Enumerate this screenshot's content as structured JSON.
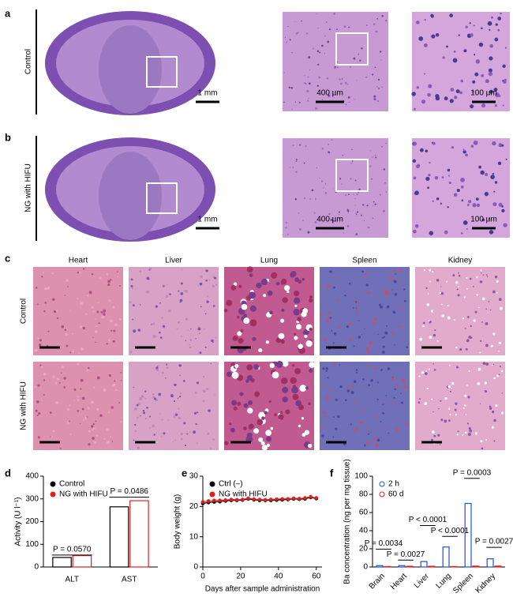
{
  "figure": {
    "panel_labels": [
      "a",
      "b",
      "c",
      "d",
      "e",
      "f"
    ],
    "brain_rows": [
      {
        "label": "Control",
        "scale_bars": [
          "1 mm",
          "400 µm",
          "100 µm"
        ]
      },
      {
        "label": "NG with HIFU",
        "scale_bars": [
          "1 mm",
          "400 µm",
          "100 µm"
        ]
      }
    ],
    "organ_columns": [
      "Heart",
      "Liver",
      "Lung",
      "Spleen",
      "Kidney"
    ],
    "organ_rows": [
      "Control",
      "NG with HIFU"
    ]
  },
  "chart_data": [
    {
      "type": "bar",
      "y_label": "Activity (U l⁻¹)",
      "categories": [
        "ALT",
        "AST"
      ],
      "series": [
        {
          "name": "Control",
          "color": "#000000",
          "values": [
            42,
            265
          ]
        },
        {
          "name": "NG with HIFU",
          "color": "#e02020",
          "values": [
            50,
            292
          ]
        }
      ],
      "ylim": [
        0,
        400
      ],
      "yticks": [
        0,
        100,
        200,
        300,
        400
      ],
      "annotations": [
        "P = 0.0570",
        "P = 0.0486"
      ]
    },
    {
      "type": "line",
      "y_label": "Body weight (g)",
      "x_label": "Days after sample administration",
      "x": [
        0,
        3,
        6,
        9,
        12,
        15,
        18,
        21,
        24,
        27,
        30,
        33,
        36,
        39,
        42,
        45,
        48,
        51,
        54,
        57,
        60
      ],
      "series": [
        {
          "name": "Ctrl (–)",
          "color": "#000000",
          "values": [
            21,
            21.3,
            21.5,
            21.6,
            21.8,
            22,
            22,
            22.1,
            22.5,
            22.2,
            22,
            22,
            22,
            22.1,
            22.2,
            22.3,
            22.5,
            22.4,
            22.5,
            23,
            22.6
          ]
        },
        {
          "name": "NG with HIFU",
          "color": "#e02020",
          "values": [
            21.5,
            21.8,
            22,
            22,
            22.1,
            22.3,
            22.2,
            22.3,
            22.7,
            22.4,
            22.3,
            22.2,
            22.3,
            22.4,
            22.5,
            22.5,
            22.7,
            22.6,
            22.8,
            23.2,
            22.8
          ]
        }
      ],
      "xlim": [
        0,
        63
      ],
      "xticks": [
        0,
        20,
        40,
        60
      ],
      "ylim": [
        0,
        30
      ],
      "yticks": [
        0,
        10,
        20,
        30
      ]
    },
    {
      "type": "bar",
      "y_label": "Ba concentration (ng per mg tissue)",
      "categories": [
        "Brain",
        "Heart",
        "Liver",
        "Lung",
        "Spleen",
        "Kidney"
      ],
      "series": [
        {
          "name": "2 h",
          "color": "#2050d0",
          "values": [
            1.5,
            1.5,
            6,
            22,
            70,
            9
          ]
        },
        {
          "name": "60 d",
          "color": "#e02020",
          "values": [
            0.5,
            0.8,
            0.8,
            0.5,
            1,
            1
          ]
        }
      ],
      "ylim": [
        0,
        100
      ],
      "yticks": [
        0,
        20,
        40,
        60,
        80,
        100
      ],
      "annotations": [
        "P = 0.0034",
        "P = 0.0027",
        "P < 0.0001",
        "P < 0.0001",
        "P = 0.0003",
        "P = 0.0027"
      ]
    }
  ]
}
